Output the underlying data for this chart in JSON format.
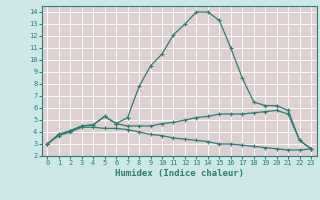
{
  "xlabel": "Humidex (Indice chaleur)",
  "xlim": [
    -0.5,
    23.5
  ],
  "ylim": [
    2,
    14.5
  ],
  "yticks": [
    2,
    3,
    4,
    5,
    6,
    7,
    8,
    9,
    10,
    11,
    12,
    13,
    14
  ],
  "xticks": [
    0,
    1,
    2,
    3,
    4,
    5,
    6,
    7,
    8,
    9,
    10,
    11,
    12,
    13,
    14,
    15,
    16,
    17,
    18,
    19,
    20,
    21,
    22,
    23
  ],
  "background_color": "#cce8e8",
  "plot_bg_color": "#ddd0d0",
  "grid_color": "#ffffff",
  "line_color": "#2e7d6e",
  "line1_x": [
    0,
    1,
    2,
    3,
    4,
    5,
    6,
    7,
    8,
    9,
    10,
    11,
    12,
    13,
    14,
    15,
    16,
    17,
    18,
    19,
    20,
    21,
    22,
    23
  ],
  "line1_y": [
    3.0,
    3.8,
    4.1,
    4.5,
    4.6,
    5.3,
    4.7,
    5.2,
    7.8,
    9.5,
    10.5,
    12.1,
    13.0,
    14.0,
    14.0,
    13.3,
    11.0,
    8.5,
    6.5,
    6.2,
    6.2,
    5.8,
    3.3,
    2.6
  ],
  "line2_x": [
    0,
    1,
    2,
    3,
    4,
    5,
    6,
    7,
    8,
    9,
    10,
    11,
    12,
    13,
    14,
    15,
    16,
    17,
    18,
    19,
    20,
    21,
    22,
    23
  ],
  "line2_y": [
    3.0,
    3.8,
    4.1,
    4.5,
    4.6,
    5.3,
    4.7,
    4.5,
    4.5,
    4.5,
    4.7,
    4.8,
    5.0,
    5.2,
    5.3,
    5.5,
    5.5,
    5.5,
    5.6,
    5.7,
    5.8,
    5.5,
    3.3,
    2.6
  ],
  "line3_x": [
    0,
    1,
    2,
    3,
    4,
    5,
    6,
    7,
    8,
    9,
    10,
    11,
    12,
    13,
    14,
    15,
    16,
    17,
    18,
    19,
    20,
    21,
    22,
    23
  ],
  "line3_y": [
    3.0,
    3.7,
    4.0,
    4.4,
    4.4,
    4.3,
    4.3,
    4.2,
    4.0,
    3.8,
    3.7,
    3.5,
    3.4,
    3.3,
    3.2,
    3.0,
    3.0,
    2.9,
    2.8,
    2.7,
    2.6,
    2.5,
    2.5,
    2.6
  ],
  "marker": "+"
}
